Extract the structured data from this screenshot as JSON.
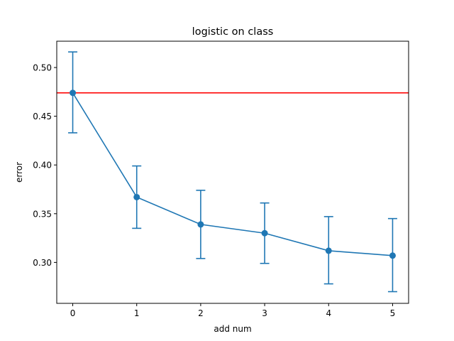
{
  "chart_data": {
    "type": "line",
    "title": "logistic on class",
    "xlabel": "add num",
    "ylabel": "error",
    "xlim": [
      -0.25,
      5.25
    ],
    "ylim": [
      0.258,
      0.527
    ],
    "x_ticks": [
      0,
      1,
      2,
      3,
      4,
      5
    ],
    "y_ticks": [
      0.3,
      0.35,
      0.4,
      0.45,
      0.5
    ],
    "y_tick_labels": [
      "0.30",
      "0.35",
      "0.40",
      "0.45",
      "0.50"
    ],
    "series": [
      {
        "x": [
          0,
          1,
          2,
          3,
          4,
          5
        ],
        "y": [
          0.474,
          0.367,
          0.339,
          0.33,
          0.312,
          0.307
        ],
        "err_low": [
          0.433,
          0.335,
          0.304,
          0.299,
          0.278,
          0.27
        ],
        "err_high": [
          0.516,
          0.399,
          0.374,
          0.361,
          0.347,
          0.345
        ],
        "color": "#1f77b4"
      }
    ],
    "hline": {
      "y": 0.474,
      "color": "#ff0000"
    },
    "grid": false,
    "legend": null
  }
}
